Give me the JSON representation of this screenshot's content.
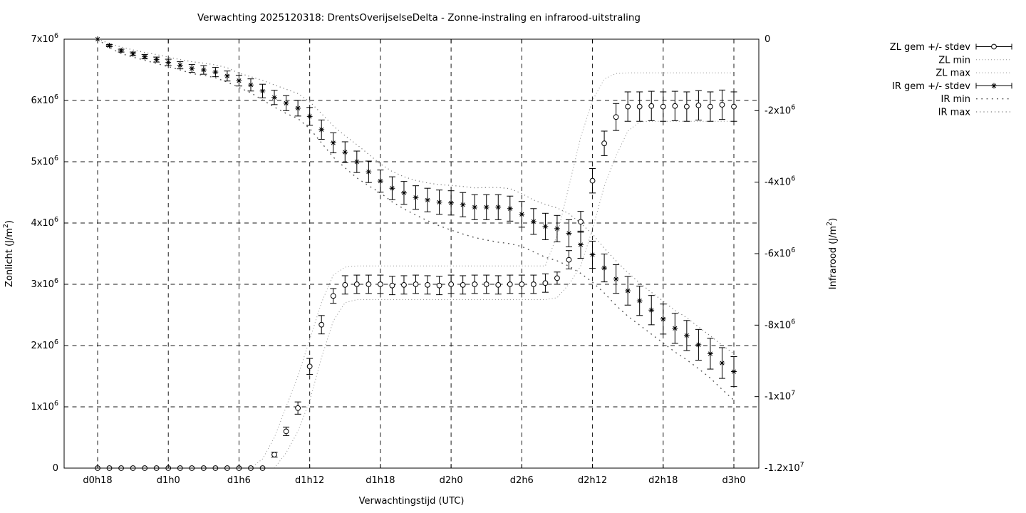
{
  "title": "Verwachting 2025120318: DrentsOverijselseDelta - Zonne-instraling en infrarood-uitstraling",
  "legend": {
    "items": [
      {
        "label": "ZL gem +/- stdev",
        "style": "zl-errorbar"
      },
      {
        "label": "ZL min",
        "style": "zl-dotted"
      },
      {
        "label": "ZL max",
        "style": "zl-dotted"
      },
      {
        "label": "IR gem +/- stdev",
        "style": "ir-errorbar"
      },
      {
        "label": "IR min",
        "style": "ir-min-dotted"
      },
      {
        "label": "IR max",
        "style": "ir-max-dotted"
      }
    ]
  },
  "axes": {
    "x": {
      "label": "Verwachtingstijd (UTC)",
      "tick_labels": [
        "d0h18",
        "d1h0",
        "d1h6",
        "d1h12",
        "d1h18",
        "d2h0",
        "d2h6",
        "d2h12",
        "d2h18",
        "d3h0"
      ],
      "tick_indices": [
        0,
        6,
        12,
        18,
        24,
        30,
        36,
        42,
        48,
        54
      ]
    },
    "y_left": {
      "label": "Zonlicht (J/m^{2})",
      "tick_labels": [
        "0",
        "1x10^{6}",
        "2x10^{6}",
        "3x10^{6}",
        "4x10^{6}",
        "5x10^{6}",
        "6x10^{6}",
        "7x10^{6}"
      ],
      "tick_values": [
        0,
        1,
        2,
        3,
        4,
        5,
        6,
        7
      ],
      "range_e6": [
        0,
        7
      ]
    },
    "y_right": {
      "label": "Infrarood (J/m^{2})",
      "tick_labels": [
        "0",
        "-2x10^{6}",
        "-4x10^{6}",
        "-6x10^{6}",
        "-8x10^{6}",
        "-1x10^{7}",
        "-1.2x10^{7}"
      ],
      "tick_values": [
        0,
        -2,
        -4,
        -6,
        -8,
        -10,
        -12
      ],
      "range_e6": [
        -12,
        0
      ]
    }
  },
  "chart_data": {
    "type": "line",
    "unit": "values in 1e6 J/m^2",
    "grid": true,
    "legend_position": "outside-right-top",
    "x_hour_labels": [
      "d0h18",
      "d0h19",
      "d0h20",
      "d0h21",
      "d0h22",
      "d0h23",
      "d1h0",
      "d1h1",
      "d1h2",
      "d1h3",
      "d1h4",
      "d1h5",
      "d1h6",
      "d1h7",
      "d1h8",
      "d1h9",
      "d1h10",
      "d1h11",
      "d1h12",
      "d1h13",
      "d1h14",
      "d1h15",
      "d1h16",
      "d1h17",
      "d1h18",
      "d1h19",
      "d1h20",
      "d1h21",
      "d1h22",
      "d1h23",
      "d2h0",
      "d2h1",
      "d2h2",
      "d2h3",
      "d2h4",
      "d2h5",
      "d2h6",
      "d2h7",
      "d2h8",
      "d2h9",
      "d2h10",
      "d2h11",
      "d2h12",
      "d2h13",
      "d2h14",
      "d2h15",
      "d2h16",
      "d2h17",
      "d2h18",
      "d2h19",
      "d2h20",
      "d2h21",
      "d2h22",
      "d2h23",
      "d3h0"
    ],
    "series": [
      {
        "name": "ZL gem +/- stdev",
        "axis": "left",
        "marker": "circle",
        "values": [
          0,
          0,
          0,
          0,
          0,
          0,
          0,
          0,
          0,
          0,
          0,
          0,
          0,
          0,
          0,
          0.22,
          0.6,
          0.98,
          1.66,
          2.34,
          2.81,
          2.99,
          3.0,
          3.0,
          3.0,
          2.98,
          2.99,
          3.0,
          2.99,
          2.98,
          3.0,
          2.99,
          3.0,
          3.0,
          2.99,
          3.0,
          3.0,
          3.0,
          3.02,
          3.1,
          3.4,
          4.02,
          4.69,
          5.3,
          5.73,
          5.9,
          5.9,
          5.91,
          5.9,
          5.91,
          5.9,
          5.92,
          5.9,
          5.93,
          5.9
        ],
        "stdev": [
          0,
          0,
          0,
          0,
          0,
          0,
          0,
          0,
          0,
          0,
          0,
          0,
          0,
          0,
          0,
          0.04,
          0.07,
          0.1,
          0.13,
          0.15,
          0.12,
          0.15,
          0.15,
          0.15,
          0.15,
          0.15,
          0.15,
          0.15,
          0.15,
          0.15,
          0.15,
          0.15,
          0.15,
          0.15,
          0.15,
          0.15,
          0.15,
          0.15,
          0.15,
          0.1,
          0.15,
          0.17,
          0.2,
          0.2,
          0.22,
          0.24,
          0.24,
          0.24,
          0.24,
          0.24,
          0.24,
          0.24,
          0.24,
          0.24,
          0.24
        ]
      },
      {
        "name": "ZL min",
        "axis": "left",
        "style": "zl-dotted",
        "values": [
          0,
          0,
          0,
          0,
          0,
          0,
          0,
          0,
          0,
          0,
          0,
          0,
          0,
          0,
          0,
          0,
          0.25,
          0.6,
          1.1,
          1.8,
          2.4,
          2.7,
          2.75,
          2.75,
          2.75,
          2.75,
          2.75,
          2.75,
          2.75,
          2.75,
          2.75,
          2.75,
          2.75,
          2.75,
          2.75,
          2.75,
          2.75,
          2.75,
          2.75,
          2.78,
          3.0,
          3.3,
          3.9,
          4.6,
          5.1,
          5.5,
          5.65,
          5.66,
          5.66,
          5.66,
          5.66,
          5.66,
          5.66,
          5.66,
          5.66
        ]
      },
      {
        "name": "ZL max",
        "axis": "left",
        "style": "zl-dotted",
        "values": [
          0,
          0,
          0,
          0,
          0,
          0,
          0,
          0,
          0,
          0,
          0,
          0,
          0,
          0,
          0.15,
          0.5,
          1.0,
          1.5,
          2.1,
          2.7,
          3.15,
          3.28,
          3.3,
          3.3,
          3.3,
          3.3,
          3.3,
          3.3,
          3.3,
          3.3,
          3.3,
          3.3,
          3.3,
          3.3,
          3.3,
          3.3,
          3.3,
          3.3,
          3.3,
          3.8,
          4.6,
          5.4,
          6.0,
          6.35,
          6.44,
          6.45,
          6.45,
          6.45,
          6.45,
          6.45,
          6.45,
          6.45,
          6.45,
          6.45,
          6.45
        ]
      },
      {
        "name": "IR gem +/- stdev",
        "axis": "right",
        "marker": "asterisk",
        "values": [
          0,
          -0.18,
          -0.32,
          -0.41,
          -0.49,
          -0.57,
          -0.65,
          -0.73,
          -0.82,
          -0.86,
          -0.92,
          -1.03,
          -1.16,
          -1.28,
          -1.45,
          -1.63,
          -1.79,
          -1.93,
          -2.16,
          -2.53,
          -2.9,
          -3.16,
          -3.43,
          -3.71,
          -3.97,
          -4.17,
          -4.3,
          -4.43,
          -4.5,
          -4.56,
          -4.58,
          -4.63,
          -4.7,
          -4.7,
          -4.7,
          -4.74,
          -4.9,
          -5.1,
          -5.24,
          -5.3,
          -5.43,
          -5.75,
          -6.03,
          -6.4,
          -6.71,
          -7.04,
          -7.32,
          -7.58,
          -7.83,
          -8.09,
          -8.29,
          -8.55,
          -8.8,
          -9.06,
          -9.3
        ],
        "stdev": [
          0,
          0.03,
          0.04,
          0.05,
          0.06,
          0.07,
          0.09,
          0.1,
          0.11,
          0.12,
          0.13,
          0.14,
          0.15,
          0.17,
          0.19,
          0.2,
          0.21,
          0.22,
          0.25,
          0.27,
          0.28,
          0.29,
          0.3,
          0.3,
          0.31,
          0.32,
          0.32,
          0.33,
          0.33,
          0.34,
          0.34,
          0.34,
          0.35,
          0.35,
          0.35,
          0.35,
          0.36,
          0.36,
          0.37,
          0.37,
          0.38,
          0.38,
          0.38,
          0.39,
          0.4,
          0.4,
          0.41,
          0.41,
          0.42,
          0.42,
          0.42,
          0.43,
          0.43,
          0.43,
          0.42
        ]
      },
      {
        "name": "IR min",
        "axis": "right",
        "style": "ir-min-dotted",
        "values": [
          0,
          -0.24,
          -0.4,
          -0.5,
          -0.59,
          -0.68,
          -0.77,
          -0.86,
          -0.96,
          -1.01,
          -1.08,
          -1.2,
          -1.35,
          -1.5,
          -1.7,
          -1.9,
          -2.08,
          -2.22,
          -2.5,
          -2.9,
          -3.3,
          -3.6,
          -3.88,
          -4.1,
          -4.3,
          -4.55,
          -4.75,
          -4.92,
          -5.08,
          -5.22,
          -5.34,
          -5.45,
          -5.55,
          -5.62,
          -5.68,
          -5.72,
          -5.8,
          -5.95,
          -6.1,
          -6.2,
          -6.35,
          -6.55,
          -6.8,
          -7.1,
          -7.45,
          -7.75,
          -8.0,
          -8.25,
          -8.5,
          -8.75,
          -8.97,
          -9.22,
          -9.48,
          -9.8,
          -10.1
        ]
      },
      {
        "name": "IR max",
        "axis": "right",
        "style": "ir-max-dotted",
        "values": [
          0,
          -0.12,
          -0.22,
          -0.3,
          -0.37,
          -0.43,
          -0.5,
          -0.57,
          -0.63,
          -0.67,
          -0.72,
          -0.8,
          -0.95,
          -1.05,
          -1.15,
          -1.28,
          -1.4,
          -1.52,
          -1.75,
          -2.08,
          -2.43,
          -2.7,
          -2.95,
          -3.22,
          -3.49,
          -3.7,
          -3.85,
          -3.95,
          -4.02,
          -4.07,
          -4.09,
          -4.12,
          -4.16,
          -4.15,
          -4.15,
          -4.18,
          -4.32,
          -4.5,
          -4.62,
          -4.72,
          -4.88,
          -5.15,
          -5.45,
          -5.85,
          -6.2,
          -6.53,
          -6.82,
          -7.08,
          -7.33,
          -7.59,
          -7.79,
          -8.05,
          -8.3,
          -8.56,
          -8.8
        ]
      }
    ]
  }
}
